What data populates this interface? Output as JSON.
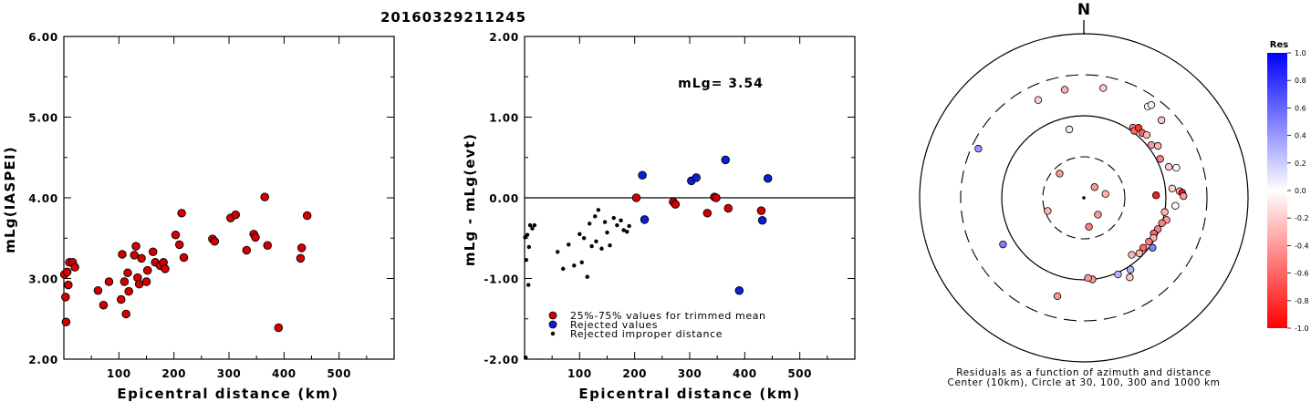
{
  "title": "20160329211245",
  "chart_data": [
    {
      "type": "scatter",
      "xlabel": "Epicentral distance (km)",
      "ylabel": "mLg(IASPEI)",
      "xlim": [
        0,
        600
      ],
      "ylim": [
        2.0,
        6.0
      ],
      "x_ticks": [
        "100",
        "200",
        "300",
        "400",
        "500"
      ],
      "y_ticks": [
        "2.00",
        "3.00",
        "4.00",
        "5.00",
        "6.00"
      ],
      "point_color": "#d40000",
      "points": [
        [
          1,
          3.05
        ],
        [
          3,
          2.77
        ],
        [
          4,
          2.46
        ],
        [
          6,
          3.08
        ],
        [
          8,
          2.92
        ],
        [
          10,
          3.2
        ],
        [
          16,
          3.2
        ],
        [
          20,
          3.14
        ],
        [
          62,
          2.85
        ],
        [
          72,
          2.67
        ],
        [
          82,
          2.96
        ],
        [
          104,
          2.74
        ],
        [
          106,
          3.3
        ],
        [
          110,
          2.96
        ],
        [
          113,
          2.56
        ],
        [
          116,
          3.07
        ],
        [
          118,
          2.84
        ],
        [
          128,
          3.29
        ],
        [
          131,
          3.4
        ],
        [
          134,
          3.01
        ],
        [
          137,
          2.93
        ],
        [
          141,
          3.25
        ],
        [
          150,
          2.96
        ],
        [
          152,
          3.1
        ],
        [
          162,
          3.33
        ],
        [
          166,
          3.2
        ],
        [
          175,
          3.16
        ],
        [
          181,
          3.2
        ],
        [
          184,
          3.12
        ],
        [
          203,
          3.54
        ],
        [
          210,
          3.42
        ],
        [
          214,
          3.81
        ],
        [
          218,
          3.26
        ],
        [
          270,
          3.49
        ],
        [
          274,
          3.46
        ],
        [
          303,
          3.75
        ],
        [
          312,
          3.79
        ],
        [
          332,
          3.35
        ],
        [
          345,
          3.55
        ],
        [
          348,
          3.51
        ],
        [
          365,
          4.01
        ],
        [
          370,
          3.41
        ],
        [
          390,
          2.39
        ],
        [
          430,
          3.25
        ],
        [
          432,
          3.38
        ],
        [
          442,
          3.78
        ]
      ]
    },
    {
      "type": "scatter",
      "xlabel": "Epicentral distance (km)",
      "ylabel": "mLg - mLg(evt)",
      "xlim": [
        0,
        600
      ],
      "ylim": [
        -2.0,
        2.0
      ],
      "x_ticks": [
        "100",
        "200",
        "300",
        "400",
        "500"
      ],
      "y_ticks": [
        "-2.00",
        "-1.00",
        "0.00",
        "1.00",
        "2.00"
      ],
      "annotation": "mLg= 3.54",
      "reference_line": 0.0,
      "legend": [
        {
          "label": "25%-75% values for trimmed mean",
          "color": "#d40000"
        },
        {
          "label": "Rejected values",
          "color": "#0b1fd6"
        },
        {
          "label": "Rejected improper distance",
          "color": "#000000"
        }
      ],
      "series": [
        {
          "name": "25%-75% values for trimmed mean",
          "color": "#d40000",
          "points": [
            [
              203,
              0.0
            ],
            [
              270,
              -0.05
            ],
            [
              274,
              -0.08
            ],
            [
              332,
              -0.19
            ],
            [
              345,
              0.01
            ],
            [
              348,
              0.0
            ],
            [
              370,
              -0.13
            ],
            [
              430,
              -0.16
            ]
          ]
        },
        {
          "name": "Rejected values",
          "color": "#0b1fd6",
          "points": [
            [
              214,
              0.28
            ],
            [
              218,
              -0.27
            ],
            [
              303,
              0.21
            ],
            [
              312,
              0.25
            ],
            [
              365,
              0.47
            ],
            [
              390,
              -1.15
            ],
            [
              432,
              -0.28
            ],
            [
              442,
              0.24
            ]
          ]
        },
        {
          "name": "Rejected improper distance",
          "color": "#000000",
          "size": "small",
          "points": [
            [
              1,
              -0.49
            ],
            [
              2,
              -1.98
            ],
            [
              3,
              -0.77
            ],
            [
              5,
              -0.46
            ],
            [
              7,
              -1.08
            ],
            [
              8,
              -0.61
            ],
            [
              10,
              -0.34
            ],
            [
              14,
              -0.38
            ],
            [
              18,
              -0.34
            ],
            [
              60,
              -0.67
            ],
            [
              70,
              -0.88
            ],
            [
              80,
              -0.58
            ],
            [
              90,
              -0.84
            ],
            [
              100,
              -0.45
            ],
            [
              104,
              -0.8
            ],
            [
              108,
              -0.5
            ],
            [
              114,
              -0.98
            ],
            [
              118,
              -0.32
            ],
            [
              122,
              -0.6
            ],
            [
              128,
              -0.23
            ],
            [
              130,
              -0.54
            ],
            [
              134,
              -0.15
            ],
            [
              140,
              -0.63
            ],
            [
              146,
              -0.3
            ],
            [
              150,
              -0.43
            ],
            [
              155,
              -0.59
            ],
            [
              162,
              -0.25
            ],
            [
              168,
              -0.34
            ],
            [
              175,
              -0.28
            ],
            [
              180,
              -0.4
            ],
            [
              186,
              -0.42
            ],
            [
              190,
              -0.35
            ]
          ]
        }
      ]
    },
    {
      "type": "scatter",
      "subtype": "polar",
      "north_label": "N",
      "caption": [
        "Residuals as a function of azimuth and distance",
        "Center (10km), Circle at 30, 100, 300 and 1000 km"
      ],
      "colorbar_title": "Res",
      "colorbar_ticks": [
        "1.0",
        "0.8",
        "0.6",
        "0.4",
        "0.2",
        "0.0",
        "-0.2",
        "-0.4",
        "-0.6",
        "-0.8",
        "-1.0"
      ],
      "colorbar_range": [
        -1.0,
        1.0
      ],
      "rings_km": [
        30,
        100,
        300,
        1000
      ],
      "points": [
        {
          "az": 35,
          "dist": 220,
          "res": 0.0
        },
        {
          "az": 45,
          "dist": 210,
          "res": -0.2
        },
        {
          "az": 36,
          "dist": 240,
          "res": 0.05
        },
        {
          "az": 350,
          "dist": 210,
          "res": -0.3
        },
        {
          "az": 10,
          "dist": 220,
          "res": -0.2
        },
        {
          "az": 35,
          "dist": 110,
          "res": -0.5
        },
        {
          "az": 37,
          "dist": 105,
          "res": -0.6
        },
        {
          "az": 38,
          "dist": 120,
          "res": -0.8
        },
        {
          "az": 42,
          "dist": 115,
          "res": -0.6
        },
        {
          "az": 45,
          "dist": 120,
          "res": -0.3
        },
        {
          "az": 52,
          "dist": 110,
          "res": -0.4
        },
        {
          "az": 55,
          "dist": 125,
          "res": -0.3
        },
        {
          "az": 63,
          "dist": 110,
          "res": -0.5
        },
        {
          "az": 70,
          "dist": 125,
          "res": -0.2
        },
        {
          "az": 72,
          "dist": 150,
          "res": 0.0
        },
        {
          "az": 88,
          "dist": 75,
          "res": -0.9
        },
        {
          "az": 84,
          "dist": 120,
          "res": -0.2
        },
        {
          "az": 86,
          "dist": 145,
          "res": -0.3
        },
        {
          "az": 87,
          "dist": 155,
          "res": -0.9
        },
        {
          "az": 89,
          "dist": 160,
          "res": -0.4
        },
        {
          "az": 95,
          "dist": 130,
          "res": 0.0
        },
        {
          "az": 100,
          "dist": 100,
          "res": -0.3
        },
        {
          "az": 105,
          "dist": 110,
          "res": -0.4
        },
        {
          "az": 108,
          "dist": 100,
          "res": -0.5
        },
        {
          "az": 113,
          "dist": 95,
          "res": -0.5
        },
        {
          "az": 117,
          "dist": 90,
          "res": -0.6
        },
        {
          "az": 120,
          "dist": 95,
          "res": -0.3
        },
        {
          "az": 124,
          "dist": 90,
          "res": -0.5
        },
        {
          "az": 126,
          "dist": 108,
          "res": 0.5
        },
        {
          "az": 130,
          "dist": 88,
          "res": -0.6
        },
        {
          "az": 135,
          "dist": 90,
          "res": -0.3
        },
        {
          "az": 140,
          "dist": 80,
          "res": -0.3
        },
        {
          "az": 147,
          "dist": 110,
          "res": 0.3
        },
        {
          "az": 150,
          "dist": 130,
          "res": -0.2
        },
        {
          "az": 156,
          "dist": 105,
          "res": 0.3
        },
        {
          "az": 174,
          "dist": 100,
          "res": -0.4
        },
        {
          "az": 177,
          "dist": 95,
          "res": -0.4
        },
        {
          "az": 195,
          "dist": 170,
          "res": -0.4
        },
        {
          "az": 240,
          "dist": 135,
          "res": 0.5
        },
        {
          "az": 295,
          "dist": 250,
          "res": 0.4
        },
        {
          "az": 335,
          "dist": 200,
          "res": -0.2
        },
        {
          "az": 348,
          "dist": 70,
          "res": -0.1
        },
        {
          "az": 45,
          "dist": 15,
          "res": -0.4
        },
        {
          "az": 80,
          "dist": 18,
          "res": -0.3
        },
        {
          "az": 140,
          "dist": 18,
          "res": -0.4
        },
        {
          "az": 170,
          "dist": 22,
          "res": -0.5
        },
        {
          "az": 250,
          "dist": 28,
          "res": -0.3
        },
        {
          "az": 315,
          "dist": 25,
          "res": -0.4
        }
      ]
    }
  ]
}
